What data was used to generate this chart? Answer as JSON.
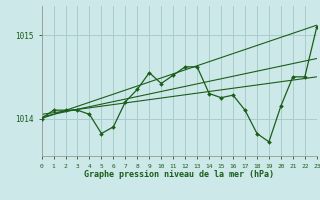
{
  "background_color": "#cce8e8",
  "grid_color": "#aacccc",
  "line_color": "#1a5e1a",
  "xlabel": "Graphe pression niveau de la mer (hPa)",
  "xlim": [
    0,
    23
  ],
  "ylim": [
    1013.55,
    1015.35
  ],
  "yticks": [
    1014,
    1015
  ],
  "ytick_labels": [
    "1014",
    "1015"
  ],
  "xticks": [
    0,
    1,
    2,
    3,
    4,
    5,
    6,
    7,
    8,
    9,
    10,
    11,
    12,
    13,
    14,
    15,
    16,
    17,
    18,
    19,
    20,
    21,
    22,
    23
  ],
  "series_main": {
    "x": [
      0,
      1,
      2,
      3,
      4,
      5,
      6,
      7,
      8,
      9,
      10,
      11,
      12,
      13,
      14,
      15,
      16,
      17,
      18,
      19,
      20,
      21,
      22,
      23
    ],
    "y": [
      1014.0,
      1014.1,
      1014.1,
      1014.1,
      1014.05,
      1013.82,
      1013.9,
      1014.2,
      1014.35,
      1014.55,
      1014.42,
      1014.52,
      1014.62,
      1014.62,
      1014.3,
      1014.25,
      1014.28,
      1014.1,
      1013.82,
      1013.72,
      1014.15,
      1014.5,
      1014.5,
      1015.1
    ]
  },
  "trend1": {
    "x": [
      0,
      23
    ],
    "y": [
      1014.0,
      1015.12
    ]
  },
  "trend2": {
    "x": [
      0,
      23
    ],
    "y": [
      1014.05,
      1014.5
    ]
  },
  "trend3": {
    "x": [
      0,
      23
    ],
    "y": [
      1014.02,
      1014.72
    ]
  }
}
